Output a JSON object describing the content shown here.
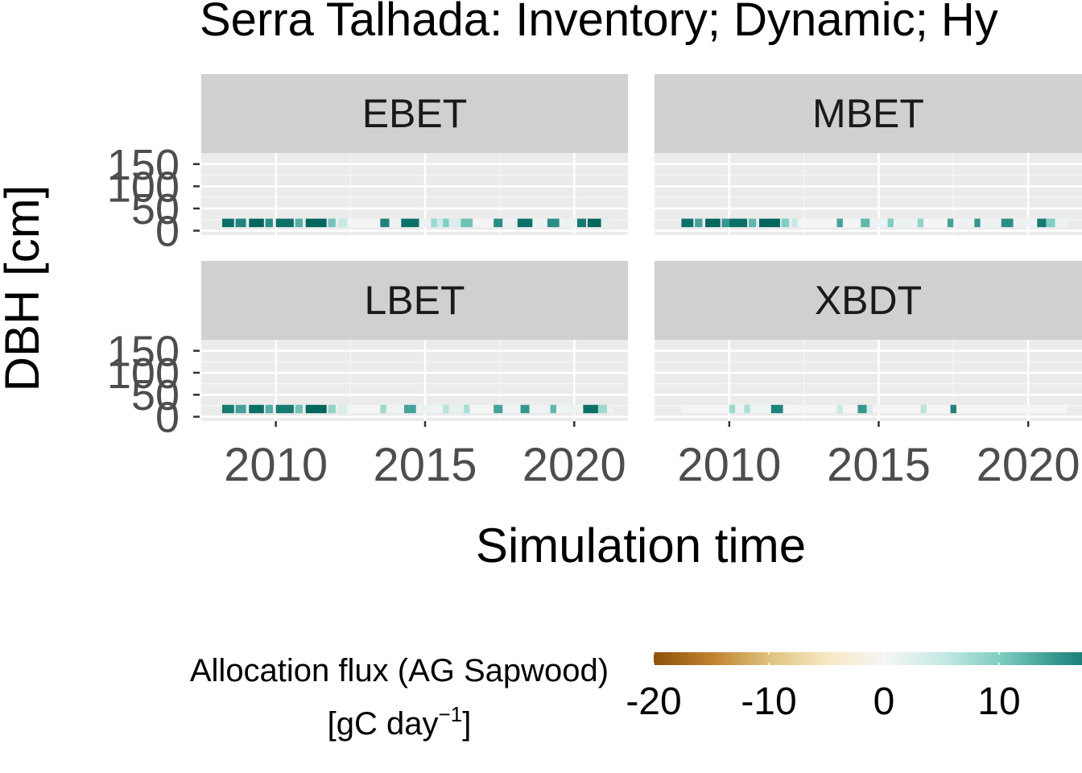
{
  "chart_data": {
    "type": "heatmap",
    "title": "Serra Talhada: Inventory; Dynamic; Hy",
    "xlabel": "Simulation time",
    "ylabel": "DBH [cm]",
    "x_ticks": [
      "2010",
      "2015",
      "2020"
    ],
    "x_tick_values": [
      2010,
      2015,
      2020
    ],
    "xlim": [
      2007.5,
      2021.8
    ],
    "y_ticks": [
      "0",
      "50",
      "100",
      "150"
    ],
    "y_tick_values": [
      0,
      50,
      100,
      150
    ],
    "ylim": [
      -10,
      175
    ],
    "grid": true,
    "panels": [
      {
        "name": "EBET",
        "row": 0,
        "col": 0,
        "x_axis_labels": false,
        "cells": [
          {
            "start": 2008.2,
            "end": 2008.6,
            "value": 19
          },
          {
            "start": 2008.65,
            "end": 2009.0,
            "value": 17
          },
          {
            "start": 2009.1,
            "end": 2009.6,
            "value": 21
          },
          {
            "start": 2009.65,
            "end": 2009.9,
            "value": 16
          },
          {
            "start": 2010.0,
            "end": 2010.6,
            "value": 19
          },
          {
            "start": 2010.65,
            "end": 2010.9,
            "value": 13
          },
          {
            "start": 2011.0,
            "end": 2011.7,
            "value": 21
          },
          {
            "start": 2011.75,
            "end": 2012.0,
            "value": 11
          },
          {
            "start": 2012.1,
            "end": 2012.4,
            "value": 5
          },
          {
            "start": 2012.4,
            "end": 2013.5,
            "value": 0
          },
          {
            "start": 2013.5,
            "end": 2013.8,
            "value": 17
          },
          {
            "start": 2013.8,
            "end": 2014.2,
            "value": 1
          },
          {
            "start": 2014.2,
            "end": 2014.8,
            "value": 19
          },
          {
            "start": 2014.8,
            "end": 2015.2,
            "value": 1
          },
          {
            "start": 2015.2,
            "end": 2015.4,
            "value": 8
          },
          {
            "start": 2015.4,
            "end": 2015.6,
            "value": 4
          },
          {
            "start": 2015.6,
            "end": 2015.8,
            "value": 10
          },
          {
            "start": 2015.8,
            "end": 2016.2,
            "value": 3
          },
          {
            "start": 2016.2,
            "end": 2016.6,
            "value": 11
          },
          {
            "start": 2016.6,
            "end": 2017.3,
            "value": 0
          },
          {
            "start": 2017.3,
            "end": 2017.6,
            "value": 16
          },
          {
            "start": 2017.6,
            "end": 2018.0,
            "value": 1
          },
          {
            "start": 2018.1,
            "end": 2018.6,
            "value": 19
          },
          {
            "start": 2018.6,
            "end": 2019.1,
            "value": 1
          },
          {
            "start": 2019.1,
            "end": 2019.5,
            "value": 16
          },
          {
            "start": 2019.5,
            "end": 2020.1,
            "value": 1
          },
          {
            "start": 2020.1,
            "end": 2020.4,
            "value": 18
          },
          {
            "start": 2020.45,
            "end": 2020.9,
            "value": 21
          },
          {
            "start": 2020.9,
            "end": 2021.2,
            "value": 2
          }
        ]
      },
      {
        "name": "MBET",
        "row": 0,
        "col": 1,
        "x_axis_labels": false,
        "cells": [
          {
            "start": 2008.4,
            "end": 2008.8,
            "value": 19
          },
          {
            "start": 2008.85,
            "end": 2009.1,
            "value": 14
          },
          {
            "start": 2009.2,
            "end": 2009.7,
            "value": 21
          },
          {
            "start": 2009.75,
            "end": 2010.0,
            "value": 15
          },
          {
            "start": 2010.0,
            "end": 2010.6,
            "value": 19
          },
          {
            "start": 2010.65,
            "end": 2010.9,
            "value": 12
          },
          {
            "start": 2011.0,
            "end": 2011.7,
            "value": 21
          },
          {
            "start": 2011.75,
            "end": 2012.0,
            "value": 10
          },
          {
            "start": 2012.1,
            "end": 2012.3,
            "value": 5
          },
          {
            "start": 2012.3,
            "end": 2013.6,
            "value": 0
          },
          {
            "start": 2013.6,
            "end": 2013.8,
            "value": 14
          },
          {
            "start": 2013.8,
            "end": 2014.4,
            "value": 0
          },
          {
            "start": 2014.4,
            "end": 2014.7,
            "value": 12
          },
          {
            "start": 2014.7,
            "end": 2015.3,
            "value": 1
          },
          {
            "start": 2015.3,
            "end": 2015.5,
            "value": 10
          },
          {
            "start": 2015.5,
            "end": 2016.3,
            "value": 1
          },
          {
            "start": 2016.3,
            "end": 2016.5,
            "value": 9
          },
          {
            "start": 2016.5,
            "end": 2017.3,
            "value": 0
          },
          {
            "start": 2017.3,
            "end": 2017.5,
            "value": 14
          },
          {
            "start": 2017.5,
            "end": 2018.2,
            "value": 1
          },
          {
            "start": 2018.2,
            "end": 2018.4,
            "value": 15
          },
          {
            "start": 2018.4,
            "end": 2019.1,
            "value": 1
          },
          {
            "start": 2019.1,
            "end": 2019.5,
            "value": 16
          },
          {
            "start": 2019.5,
            "end": 2020.3,
            "value": 1
          },
          {
            "start": 2020.3,
            "end": 2020.6,
            "value": 18
          },
          {
            "start": 2020.6,
            "end": 2020.9,
            "value": 10
          },
          {
            "start": 2020.9,
            "end": 2021.3,
            "value": 1
          }
        ]
      },
      {
        "name": "LBET",
        "row": 1,
        "col": 0,
        "x_axis_labels": true,
        "cells": [
          {
            "start": 2008.2,
            "end": 2008.6,
            "value": 18
          },
          {
            "start": 2008.65,
            "end": 2009.0,
            "value": 14
          },
          {
            "start": 2009.1,
            "end": 2009.6,
            "value": 19
          },
          {
            "start": 2009.65,
            "end": 2009.9,
            "value": 13
          },
          {
            "start": 2010.0,
            "end": 2010.6,
            "value": 18
          },
          {
            "start": 2010.65,
            "end": 2010.9,
            "value": 11
          },
          {
            "start": 2011.0,
            "end": 2011.7,
            "value": 20
          },
          {
            "start": 2011.75,
            "end": 2012.0,
            "value": 9
          },
          {
            "start": 2012.1,
            "end": 2012.4,
            "value": 3
          },
          {
            "start": 2012.4,
            "end": 2013.5,
            "value": 0
          },
          {
            "start": 2013.5,
            "end": 2013.7,
            "value": 8
          },
          {
            "start": 2013.7,
            "end": 2014.3,
            "value": 1
          },
          {
            "start": 2014.3,
            "end": 2014.7,
            "value": 14
          },
          {
            "start": 2014.7,
            "end": 2015.6,
            "value": 1
          },
          {
            "start": 2015.6,
            "end": 2015.8,
            "value": 6
          },
          {
            "start": 2015.8,
            "end": 2016.3,
            "value": 2
          },
          {
            "start": 2016.3,
            "end": 2016.5,
            "value": 7
          },
          {
            "start": 2016.5,
            "end": 2017.3,
            "value": 0
          },
          {
            "start": 2017.3,
            "end": 2017.6,
            "value": 14
          },
          {
            "start": 2017.6,
            "end": 2018.2,
            "value": 1
          },
          {
            "start": 2018.2,
            "end": 2018.5,
            "value": 15
          },
          {
            "start": 2018.5,
            "end": 2019.2,
            "value": 1
          },
          {
            "start": 2019.2,
            "end": 2019.4,
            "value": 12
          },
          {
            "start": 2019.4,
            "end": 2020.3,
            "value": 1
          },
          {
            "start": 2020.3,
            "end": 2020.8,
            "value": 19
          },
          {
            "start": 2020.8,
            "end": 2021.1,
            "value": 8
          },
          {
            "start": 2021.1,
            "end": 2021.3,
            "value": 1
          }
        ]
      },
      {
        "name": "XBDT",
        "row": 1,
        "col": 1,
        "x_axis_labels": true,
        "cells": [
          {
            "start": 2008.4,
            "end": 2010.0,
            "value": 0
          },
          {
            "start": 2010.0,
            "end": 2010.2,
            "value": 8
          },
          {
            "start": 2010.2,
            "end": 2010.5,
            "value": 1
          },
          {
            "start": 2010.5,
            "end": 2010.7,
            "value": 7
          },
          {
            "start": 2010.7,
            "end": 2011.4,
            "value": 1
          },
          {
            "start": 2011.4,
            "end": 2011.8,
            "value": 17
          },
          {
            "start": 2011.8,
            "end": 2013.6,
            "value": 0
          },
          {
            "start": 2013.6,
            "end": 2013.8,
            "value": 5
          },
          {
            "start": 2013.8,
            "end": 2014.3,
            "value": 0
          },
          {
            "start": 2014.3,
            "end": 2014.6,
            "value": 15
          },
          {
            "start": 2014.6,
            "end": 2014.8,
            "value": 3
          },
          {
            "start": 2014.8,
            "end": 2016.4,
            "value": 0
          },
          {
            "start": 2016.4,
            "end": 2016.6,
            "value": 6
          },
          {
            "start": 2016.6,
            "end": 2017.4,
            "value": 0
          },
          {
            "start": 2017.4,
            "end": 2017.6,
            "value": 17
          },
          {
            "start": 2017.6,
            "end": 2021.3,
            "value": 0
          }
        ]
      }
    ],
    "cell_dbh_range": [
      8,
      27
    ],
    "colorbar": {
      "title_line1": "Allocation flux (AG Sapwood)",
      "title_line2_main": "[gC  day",
      "title_line2_sup": "−1",
      "title_line2_end": "]",
      "ticks": [
        "-20",
        "-10",
        "0",
        "10"
      ],
      "tick_values": [
        -20,
        -10,
        0,
        10
      ],
      "min": -20,
      "max": 20,
      "stops": [
        "#8c510a",
        "#bf812d",
        "#dfc27d",
        "#f6e8c3",
        "#f5f5f5",
        "#c7eae5",
        "#80cdc1",
        "#35978f",
        "#01665e"
      ]
    }
  }
}
